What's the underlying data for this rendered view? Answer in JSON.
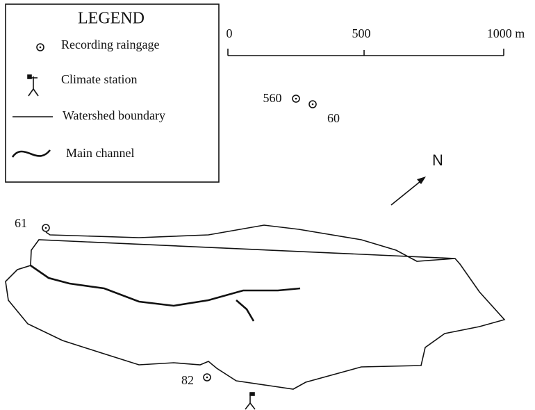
{
  "legend": {
    "title": "LEGEND",
    "items": [
      "Recording raingage",
      "Climate station",
      "Watershed boundary",
      "Main channel"
    ]
  },
  "scale": {
    "labels": [
      "0",
      "500",
      "1000 m"
    ]
  },
  "north": "N",
  "raingages": [
    "560",
    "60",
    "61",
    "82"
  ]
}
